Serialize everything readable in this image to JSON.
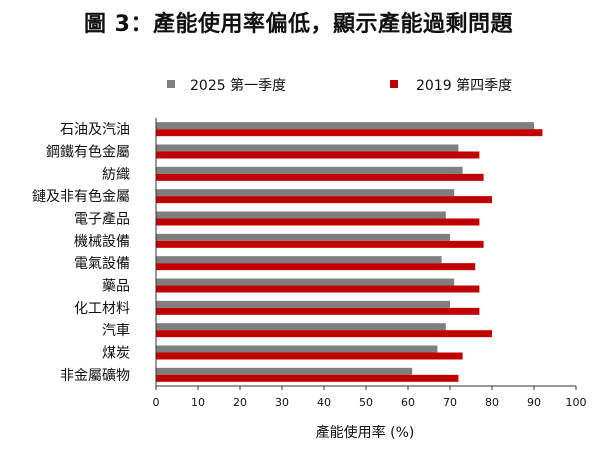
{
  "title": "圖 3：產能使用率偏低，顯示產能過剩問題",
  "colors": {
    "series1": "#7f7f7f",
    "series2": "#c00000",
    "axis": "#333333"
  },
  "chart_data": {
    "type": "bar",
    "orientation": "horizontal",
    "categories": [
      "石油及汽油",
      "鋼鐵有色金屬",
      "紡織",
      "鏈及非有色金屬",
      "電子產品",
      "機械設備",
      "電氣設備",
      "藥品",
      "化工材料",
      "汽車",
      "煤炭",
      "非金屬礦物"
    ],
    "series": [
      {
        "name": "2025 第一季度",
        "values": [
          90,
          72,
          73,
          71,
          69,
          70,
          68,
          71,
          70,
          69,
          67,
          61
        ]
      },
      {
        "name": "2019 第四季度",
        "values": [
          92,
          77,
          78,
          80,
          77,
          78,
          76,
          77,
          77,
          80,
          73,
          72
        ]
      }
    ],
    "xlabel": "產能使用率 (%)",
    "xlim": [
      0,
      100
    ],
    "xticks": [
      "0",
      "10",
      "20",
      "30",
      "40",
      "50",
      "60",
      "70",
      "80",
      "90",
      "100"
    ],
    "legend_position": "top",
    "grid": false
  }
}
